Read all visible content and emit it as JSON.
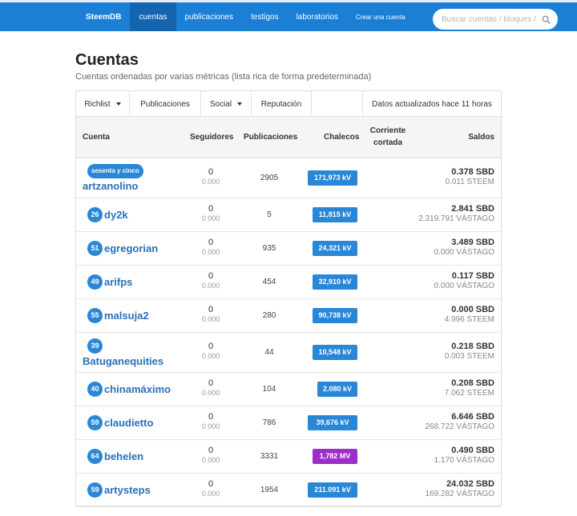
{
  "nav": {
    "brand": "SteemDB",
    "items": [
      "cuentas",
      "publicaciones",
      "testigos",
      "laboratorios"
    ],
    "create_account": "Crear una cuenta",
    "search_placeholder": "Buscar cuentas / bloques / t",
    "accent_color": "#1b7fd6",
    "search_icon": "search-icon"
  },
  "page": {
    "title": "Cuentas",
    "subtitle": "Cuentas ordenadas por varias métricas (lista rica de forma predeterminada)"
  },
  "filters": {
    "richlist": "Richlist",
    "posts": "Publicaciones",
    "social": "Social",
    "reputation": "Reputación",
    "status": "Datos actualizados hace 11 horas"
  },
  "table": {
    "headers": {
      "account": "Cuenta",
      "followers": "Seguidores",
      "posts": "Publicaciones",
      "vests": "Chalecos",
      "current_line1": "Corriente",
      "current_line2": "cortada",
      "balances": "Saldos"
    },
    "rows": [
      {
        "rep": "sesenta y cinco",
        "name": "artzanolino",
        "followers": "0",
        "followers_sp": "0.000",
        "posts": "2905",
        "vests": "171,973 kV",
        "vests_color": "#2a86d6",
        "sbd": "0.378 SBD",
        "steem": "0.011 STEEM"
      },
      {
        "rep": "26",
        "name": "dy2k",
        "followers": "0",
        "followers_sp": "0.000",
        "posts": "5",
        "vests": "11,815 kV",
        "vests_color": "#2a86d6",
        "sbd": "2.841 SBD",
        "steem": "2.319.791 VÁSTAGO"
      },
      {
        "rep": "51",
        "name": "egregorian",
        "followers": "0",
        "followers_sp": "0.000",
        "posts": "935",
        "vests": "24,321 kV",
        "vests_color": "#2a86d6",
        "sbd": "3.489 SBD",
        "steem": "0.000 VÁSTAGO"
      },
      {
        "rep": "49",
        "name": "arifps",
        "followers": "0",
        "followers_sp": "0.000",
        "posts": "454",
        "vests": "32,910 kV",
        "vests_color": "#2a86d6",
        "sbd": "0.117 SBD",
        "steem": "0.000 VÁSTAGO"
      },
      {
        "rep": "55",
        "name": "malsuja2",
        "followers": "0",
        "followers_sp": "0.000",
        "posts": "280",
        "vests": "90,738 kV",
        "vests_color": "#2a86d6",
        "sbd": "0.000 SBD",
        "steem": "4.996 STEEM"
      },
      {
        "rep": "39",
        "name": "Batuganequities",
        "followers": "0",
        "followers_sp": "0.000",
        "posts": "44",
        "vests": "10,548 kV",
        "vests_color": "#2a86d6",
        "sbd": "0.218 SBD",
        "steem": "0.003 STEEM"
      },
      {
        "rep": "40",
        "name": "chinamáximo",
        "followers": "0",
        "followers_sp": "0.000",
        "posts": "104",
        "vests": "2.080 kV",
        "vests_color": "#2a86d6",
        "sbd": "0.208 SBD",
        "steem": "7.062 STEEM"
      },
      {
        "rep": "59",
        "name": "claudietto",
        "followers": "0",
        "followers_sp": "0.000",
        "posts": "786",
        "vests": "39,676 kV",
        "vests_color": "#2a86d6",
        "sbd": "6.646 SBD",
        "steem": "268.722 VÁSTAGO"
      },
      {
        "rep": "64",
        "name": "behelen",
        "followers": "0",
        "followers_sp": "0.000",
        "posts": "3331",
        "vests": "1,782 MV",
        "vests_color": "#9b30c9",
        "sbd": "0.490 SBD",
        "steem": "1.170 VÁSTAGO"
      },
      {
        "rep": "59",
        "name": "artysteps",
        "followers": "0",
        "followers_sp": "0.000",
        "posts": "1954",
        "vests": "211.091 kV",
        "vests_color": "#2a86d6",
        "sbd": "24.032 SBD",
        "steem": "169.282 VÁSTAGO"
      }
    ]
  }
}
